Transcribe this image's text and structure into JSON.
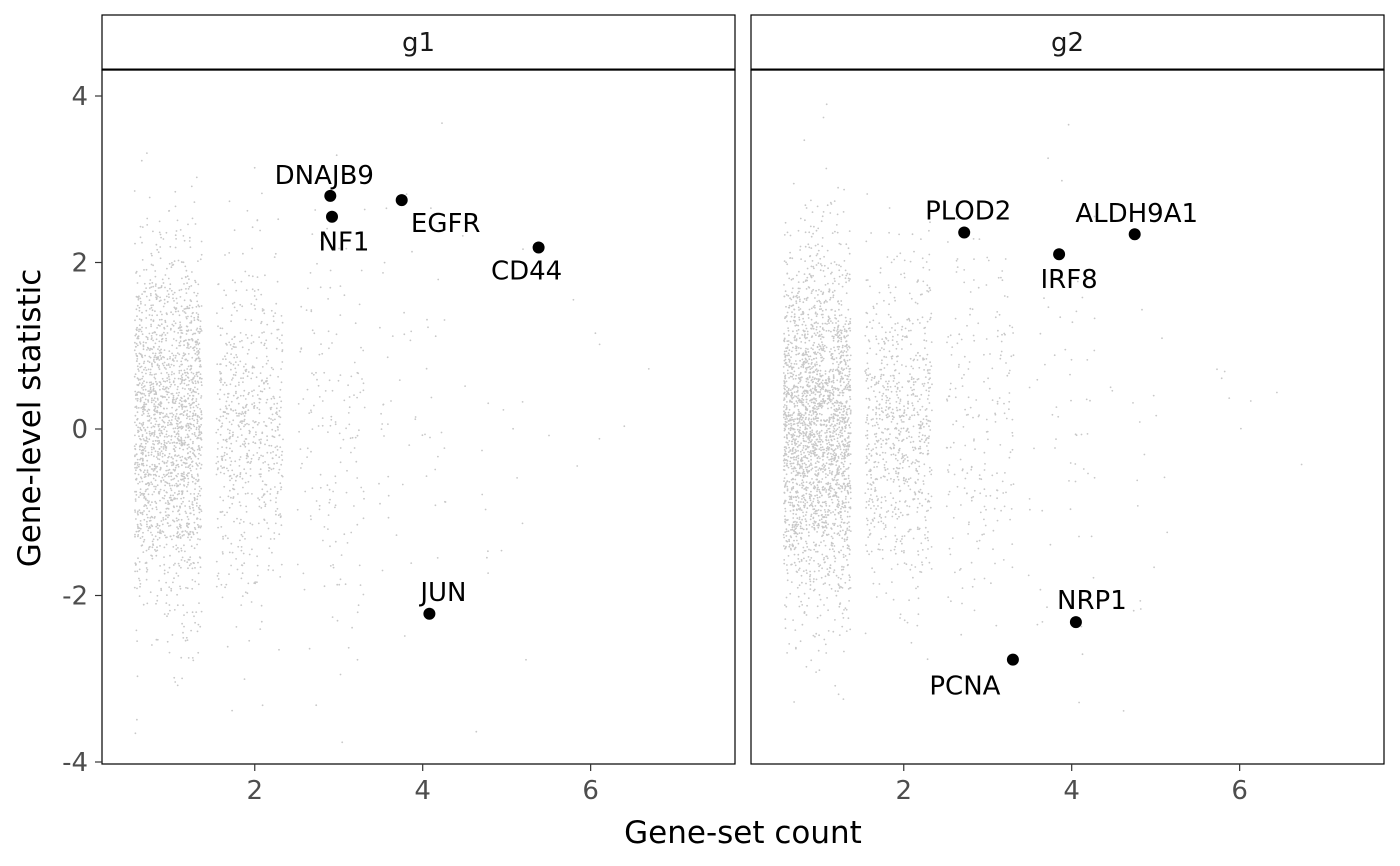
{
  "chart_data": {
    "type": "scatter",
    "xlabel": "Gene-set count",
    "ylabel": "Gene-level statistic",
    "xlim": [
      0.3,
      7.6
    ],
    "ylim": [
      -4,
      4.0
    ],
    "x_ticks": [
      2,
      4,
      6
    ],
    "y_ticks": [
      4,
      2,
      0,
      -2,
      -4
    ],
    "grid": false,
    "colors": {
      "background": "#ca c a ca",
      "highlight": "#000000",
      "axis_text": "#4d4d4d"
    },
    "panels": [
      {
        "title": "g1",
        "background_counts": [
          {
            "count": 1,
            "n": 1900,
            "sd": 1.05
          },
          {
            "count": 2,
            "n": 650,
            "sd": 1.0
          },
          {
            "count": 3,
            "n": 170,
            "sd": 1.25
          },
          {
            "count": 4,
            "n": 55,
            "sd": 1.4
          },
          {
            "count": 5,
            "n": 18,
            "sd": 1.3
          },
          {
            "count": 6,
            "n": 6,
            "sd": 1.0
          },
          {
            "count": 7,
            "n": 2,
            "sd": 0.8
          }
        ],
        "highlighted": [
          {
            "gene": "DNAJB9",
            "x": 2.9,
            "y": 2.8,
            "label_dx": -6,
            "label_dy": -12
          },
          {
            "gene": "NF1",
            "x": 2.92,
            "y": 2.55,
            "label_dx": 12,
            "label_dy": 34
          },
          {
            "gene": "EGFR",
            "x": 3.75,
            "y": 2.75,
            "label_dx": 44,
            "label_dy": 32
          },
          {
            "gene": "CD44",
            "x": 5.38,
            "y": 2.18,
            "label_dx": -12,
            "label_dy": 32
          },
          {
            "gene": "JUN",
            "x": 4.08,
            "y": -2.22,
            "label_dx": 14,
            "label_dy": -13
          }
        ]
      },
      {
        "title": "g2",
        "background_counts": [
          {
            "count": 1,
            "n": 2500,
            "sd": 1.05
          },
          {
            "count": 2,
            "n": 800,
            "sd": 0.95
          },
          {
            "count": 3,
            "n": 220,
            "sd": 1.1
          },
          {
            "count": 4,
            "n": 60,
            "sd": 1.3
          },
          {
            "count": 5,
            "n": 18,
            "sd": 1.2
          },
          {
            "count": 6,
            "n": 6,
            "sd": 0.9
          },
          {
            "count": 7,
            "n": 2,
            "sd": 0.6
          }
        ],
        "highlighted": [
          {
            "gene": "PLOD2",
            "x": 2.72,
            "y": 2.36,
            "label_dx": 4,
            "label_dy": -13
          },
          {
            "gene": "IRF8",
            "x": 3.85,
            "y": 2.1,
            "label_dx": 10,
            "label_dy": 34
          },
          {
            "gene": "ALDH9A1",
            "x": 4.75,
            "y": 2.34,
            "label_dx": 2,
            "label_dy": -12
          },
          {
            "gene": "NRP1",
            "x": 4.05,
            "y": -2.32,
            "label_dx": 16,
            "label_dy": -13
          },
          {
            "gene": "PCNA",
            "x": 3.3,
            "y": -2.77,
            "label_dx": -48,
            "label_dy": 35
          }
        ]
      }
    ]
  }
}
